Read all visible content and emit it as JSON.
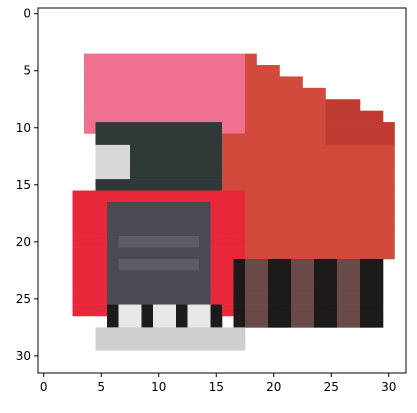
{
  "image": {
    "description_kind": "pixelated-photo",
    "subject_icon": "truck-image",
    "grid_size": [
      32,
      32
    ],
    "palette": {
      "background": "#ffffff",
      "cab_pink": "#f07090",
      "cab_red": "#e8283a",
      "body_red": "#d24a3c",
      "body_dark_red": "#c03a30",
      "windshield": "#2f3a38",
      "grille": "#4a4a52",
      "tire": "#1e1a1a",
      "shadow_grey": "#cfcfcf"
    }
  },
  "axes": {
    "xticks": [
      "0",
      "5",
      "10",
      "15",
      "20",
      "25",
      "30"
    ],
    "yticks": [
      "0",
      "5",
      "10",
      "15",
      "20",
      "25",
      "30"
    ],
    "xlim": [
      -0.5,
      31.5
    ],
    "ylim": [
      31.5,
      -0.5
    ]
  }
}
